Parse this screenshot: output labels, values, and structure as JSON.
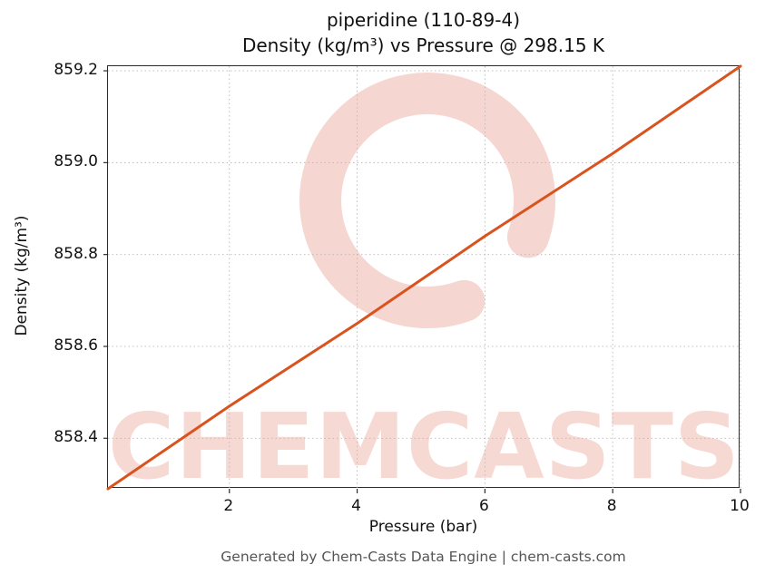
{
  "chart_data": {
    "type": "line",
    "title": "piperidine (110-89-4)",
    "subtitle": "Density (kg/m³) vs Pressure @ 298.15 K",
    "xlabel": "Pressure (bar)",
    "ylabel": "Density (kg/m³)",
    "xlim": [
      0.1,
      10
    ],
    "ylim": [
      858.29,
      859.21
    ],
    "xticks": [
      2,
      4,
      6,
      8,
      10
    ],
    "xtick_labels": [
      "2",
      "4",
      "6",
      "8",
      "10"
    ],
    "yticks": [
      858.4,
      858.6,
      858.8,
      859.0,
      859.2
    ],
    "ytick_labels": [
      "858.4",
      "858.6",
      "858.8",
      "859.0",
      "859.2"
    ],
    "grid": true,
    "legend": "none",
    "series": [
      {
        "name": "Density vs Pressure @ 298.15 K",
        "color": "#d9531e",
        "x": [
          0.1,
          2,
          4,
          6,
          8,
          10
        ],
        "y": [
          858.29,
          858.47,
          858.65,
          858.84,
          859.02,
          859.21
        ]
      }
    ]
  },
  "watermark": {
    "text": "CHEMCASTS",
    "color": "#d8452c",
    "text_opacity": 0.2,
    "logo_opacity": 0.22
  },
  "footer": {
    "text": "Generated by Chem-Casts Data Engine | chem-casts.com"
  }
}
